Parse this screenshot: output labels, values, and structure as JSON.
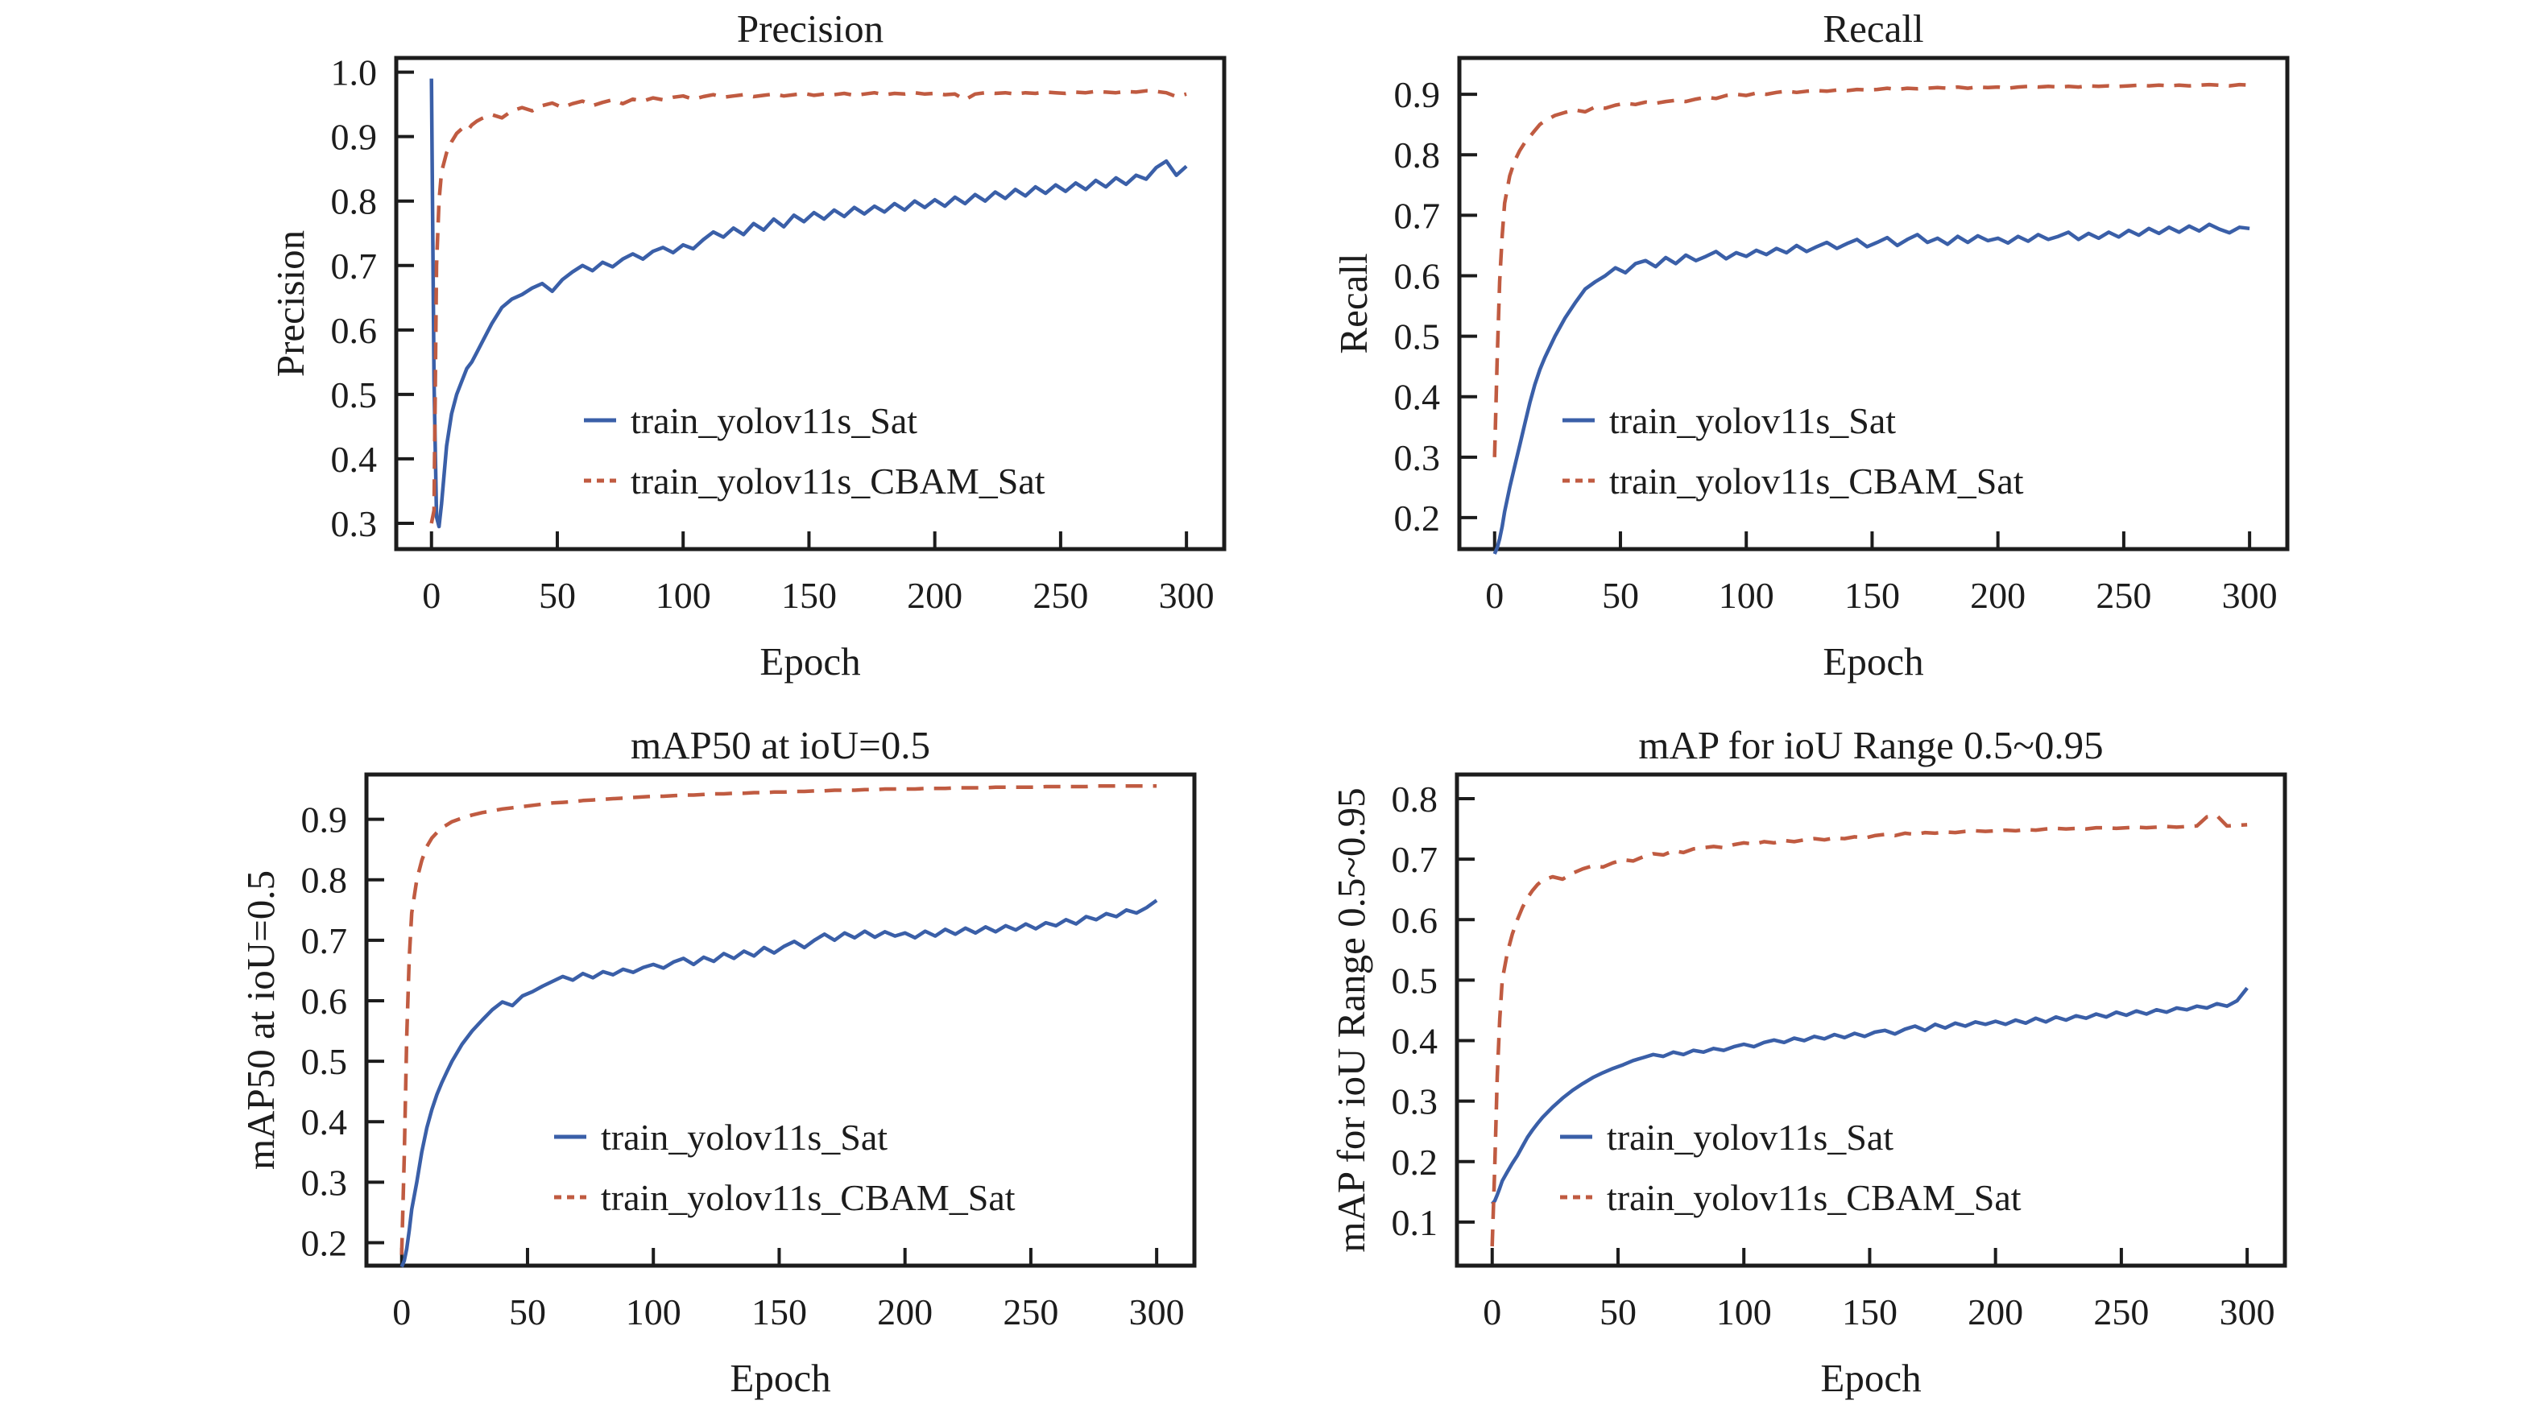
{
  "figure": {
    "background": "#ffffff",
    "ink_color": "#1c1c1c",
    "series_colors": {
      "blue_solid": "#3a5fa8",
      "orange_dashed": "#c05b41"
    }
  },
  "chart_data": {
    "type": "line",
    "xlabel": "Epoch",
    "xticks": [
      0,
      50,
      100,
      150,
      200,
      250,
      300
    ],
    "legend_labels": [
      "train_yolov11s_Sat",
      "train_yolov11s_CBAM_Sat"
    ],
    "epochs": [
      0,
      1,
      2,
      3,
      4,
      6,
      8,
      10,
      12,
      14,
      16,
      18,
      20,
      24,
      28,
      32,
      36,
      40,
      44,
      48,
      52,
      56,
      60,
      64,
      68,
      72,
      76,
      80,
      84,
      88,
      92,
      96,
      100,
      104,
      108,
      112,
      116,
      120,
      124,
      128,
      132,
      136,
      140,
      144,
      148,
      152,
      156,
      160,
      164,
      168,
      172,
      176,
      180,
      184,
      188,
      192,
      196,
      200,
      204,
      208,
      212,
      216,
      220,
      224,
      228,
      232,
      236,
      240,
      244,
      248,
      252,
      256,
      260,
      264,
      268,
      272,
      276,
      280,
      284,
      288,
      292,
      296,
      300
    ],
    "charts": [
      {
        "title": "Precision",
        "ylabel": "Precision",
        "xlabel": "Epoch",
        "xlim": [
          -14,
          315
        ],
        "ylim": [
          0.26,
          1.022
        ],
        "ytick_values": [
          1.0,
          0.9,
          0.8,
          0.7,
          0.6,
          0.5,
          0.4,
          0.3
        ],
        "ytick_labels": [
          "1.0",
          "0.9",
          "0.8",
          "0.7",
          "0.6",
          "0.5",
          "0.4",
          "0.3"
        ],
        "legend_x": 400,
        "series": [
          {
            "name": "train_yolov11s_Sat",
            "color": "#3a5fa8",
            "style": "solid",
            "values": [
              0.99,
              0.52,
              0.31,
              0.295,
              0.33,
              0.42,
              0.47,
              0.5,
              0.52,
              0.54,
              0.55,
              0.565,
              0.58,
              0.61,
              0.635,
              0.648,
              0.655,
              0.665,
              0.672,
              0.66,
              0.678,
              0.69,
              0.7,
              0.692,
              0.705,
              0.698,
              0.71,
              0.718,
              0.71,
              0.722,
              0.728,
              0.72,
              0.732,
              0.726,
              0.74,
              0.752,
              0.744,
              0.758,
              0.748,
              0.765,
              0.755,
              0.772,
              0.76,
              0.778,
              0.768,
              0.782,
              0.772,
              0.786,
              0.776,
              0.79,
              0.78,
              0.792,
              0.783,
              0.796,
              0.786,
              0.8,
              0.79,
              0.802,
              0.792,
              0.806,
              0.796,
              0.81,
              0.8,
              0.814,
              0.804,
              0.818,
              0.808,
              0.822,
              0.812,
              0.825,
              0.815,
              0.828,
              0.818,
              0.832,
              0.822,
              0.836,
              0.826,
              0.84,
              0.834,
              0.852,
              0.862,
              0.84,
              0.854
            ]
          },
          {
            "name": "train_yolov11s_CBAM_Sat",
            "color": "#c05b41",
            "style": "dashed",
            "values": [
              0.3,
              0.32,
              0.7,
              0.8,
              0.845,
              0.875,
              0.892,
              0.905,
              0.912,
              0.908,
              0.918,
              0.924,
              0.928,
              0.934,
              0.929,
              0.94,
              0.945,
              0.94,
              0.948,
              0.952,
              0.945,
              0.951,
              0.955,
              0.948,
              0.953,
              0.957,
              0.951,
              0.958,
              0.955,
              0.96,
              0.957,
              0.961,
              0.963,
              0.958,
              0.962,
              0.965,
              0.961,
              0.963,
              0.965,
              0.962,
              0.964,
              0.966,
              0.963,
              0.965,
              0.967,
              0.964,
              0.966,
              0.965,
              0.967,
              0.964,
              0.966,
              0.968,
              0.965,
              0.967,
              0.966,
              0.968,
              0.966,
              0.967,
              0.965,
              0.966,
              0.957,
              0.966,
              0.968,
              0.967,
              0.968,
              0.966,
              0.968,
              0.967,
              0.969,
              0.968,
              0.967,
              0.969,
              0.968,
              0.97,
              0.969,
              0.968,
              0.97,
              0.969,
              0.971,
              0.97,
              0.968,
              0.962,
              0.966
            ]
          }
        ]
      },
      {
        "title": "Recall",
        "ylabel": "Recall",
        "xlabel": "Epoch",
        "xlim": [
          -14,
          315
        ],
        "ylim": [
          0.148,
          0.96
        ],
        "ytick_values": [
          0.9,
          0.8,
          0.7,
          0.6,
          0.5,
          0.4,
          0.3,
          0.2
        ],
        "ytick_labels": [
          "0.9",
          "0.8",
          "0.7",
          "0.6",
          "0.5",
          "0.4",
          "0.3",
          "0.2"
        ],
        "legend_x": 295,
        "series": [
          {
            "name": "train_yolov11s_Sat",
            "color": "#3a5fa8",
            "style": "solid",
            "values": [
              0.14,
              0.15,
              0.165,
              0.185,
              0.21,
              0.25,
              0.285,
              0.32,
              0.355,
              0.39,
              0.42,
              0.445,
              0.465,
              0.5,
              0.53,
              0.555,
              0.578,
              0.59,
              0.6,
              0.613,
              0.605,
              0.62,
              0.625,
              0.615,
              0.63,
              0.62,
              0.634,
              0.625,
              0.632,
              0.64,
              0.628,
              0.638,
              0.632,
              0.642,
              0.635,
              0.645,
              0.638,
              0.65,
              0.64,
              0.648,
              0.655,
              0.645,
              0.653,
              0.66,
              0.648,
              0.655,
              0.663,
              0.65,
              0.66,
              0.668,
              0.655,
              0.662,
              0.652,
              0.665,
              0.655,
              0.666,
              0.658,
              0.662,
              0.654,
              0.665,
              0.657,
              0.668,
              0.66,
              0.665,
              0.672,
              0.66,
              0.67,
              0.662,
              0.672,
              0.664,
              0.675,
              0.667,
              0.678,
              0.67,
              0.68,
              0.672,
              0.682,
              0.674,
              0.685,
              0.677,
              0.671,
              0.68,
              0.678
            ]
          },
          {
            "name": "train_yolov11s_CBAM_Sat",
            "color": "#c05b41",
            "style": "dashed",
            "values": [
              0.3,
              0.46,
              0.59,
              0.665,
              0.72,
              0.765,
              0.79,
              0.807,
              0.82,
              0.83,
              0.84,
              0.85,
              0.856,
              0.865,
              0.87,
              0.874,
              0.871,
              0.879,
              0.877,
              0.882,
              0.885,
              0.883,
              0.887,
              0.885,
              0.888,
              0.89,
              0.888,
              0.892,
              0.895,
              0.893,
              0.898,
              0.9,
              0.898,
              0.902,
              0.9,
              0.903,
              0.905,
              0.903,
              0.905,
              0.906,
              0.905,
              0.907,
              0.906,
              0.908,
              0.907,
              0.908,
              0.91,
              0.908,
              0.91,
              0.909,
              0.91,
              0.911,
              0.91,
              0.912,
              0.91,
              0.912,
              0.911,
              0.912,
              0.91,
              0.912,
              0.913,
              0.912,
              0.913,
              0.912,
              0.913,
              0.912,
              0.914,
              0.913,
              0.914,
              0.913,
              0.914,
              0.915,
              0.914,
              0.915,
              0.914,
              0.915,
              0.914,
              0.915,
              0.916,
              0.915,
              0.914,
              0.916,
              0.915
            ]
          }
        ]
      },
      {
        "title": "mAP50 at ioU=0.5",
        "ylabel": "mAP50 at ioU=0.5",
        "xlabel": "Epoch",
        "xlim": [
          -14,
          315
        ],
        "ylim": [
          0.162,
          0.974
        ],
        "ytick_values": [
          0.9,
          0.8,
          0.7,
          0.6,
          0.5,
          0.4,
          0.3,
          0.2
        ],
        "ytick_labels": [
          "0.9",
          "0.8",
          "0.7",
          "0.6",
          "0.5",
          "0.4",
          "0.3",
          "0.2"
        ],
        "legend_x": 400,
        "series": [
          {
            "name": "train_yolov11s_Sat",
            "color": "#3a5fa8",
            "style": "solid",
            "values": [
              0.16,
              0.17,
              0.19,
              0.22,
              0.255,
              0.3,
              0.35,
              0.39,
              0.42,
              0.445,
              0.465,
              0.483,
              0.5,
              0.528,
              0.55,
              0.568,
              0.585,
              0.598,
              0.592,
              0.608,
              0.615,
              0.624,
              0.632,
              0.64,
              0.634,
              0.645,
              0.638,
              0.648,
              0.643,
              0.652,
              0.647,
              0.655,
              0.66,
              0.654,
              0.664,
              0.67,
              0.66,
              0.672,
              0.665,
              0.678,
              0.67,
              0.682,
              0.674,
              0.688,
              0.679,
              0.69,
              0.698,
              0.688,
              0.7,
              0.71,
              0.7,
              0.712,
              0.704,
              0.715,
              0.705,
              0.714,
              0.707,
              0.712,
              0.704,
              0.715,
              0.707,
              0.718,
              0.71,
              0.72,
              0.712,
              0.722,
              0.714,
              0.724,
              0.717,
              0.727,
              0.719,
              0.729,
              0.724,
              0.734,
              0.727,
              0.739,
              0.734,
              0.744,
              0.739,
              0.75,
              0.745,
              0.754,
              0.766
            ]
          },
          {
            "name": "train_yolov11s_CBAM_Sat",
            "color": "#c05b41",
            "style": "dashed",
            "values": [
              0.18,
              0.34,
              0.54,
              0.67,
              0.745,
              0.8,
              0.832,
              0.855,
              0.869,
              0.878,
              0.886,
              0.891,
              0.896,
              0.902,
              0.907,
              0.911,
              0.914,
              0.917,
              0.919,
              0.921,
              0.923,
              0.925,
              0.927,
              0.928,
              0.929,
              0.931,
              0.932,
              0.933,
              0.934,
              0.935,
              0.936,
              0.937,
              0.938,
              0.938,
              0.939,
              0.94,
              0.94,
              0.941,
              0.942,
              0.942,
              0.943,
              0.943,
              0.944,
              0.944,
              0.945,
              0.945,
              0.946,
              0.946,
              0.947,
              0.947,
              0.948,
              0.948,
              0.948,
              0.949,
              0.949,
              0.95,
              0.95,
              0.95,
              0.95,
              0.951,
              0.951,
              0.951,
              0.952,
              0.952,
              0.952,
              0.952,
              0.953,
              0.953,
              0.953,
              0.953,
              0.953,
              0.954,
              0.954,
              0.954,
              0.954,
              0.954,
              0.955,
              0.955,
              0.955,
              0.955,
              0.955,
              0.955,
              0.955
            ]
          }
        ]
      },
      {
        "title": "mAP for ioU Range 0.5~0.95",
        "ylabel": "mAP for ioU Range 0.5~0.95",
        "xlabel": "Epoch",
        "xlim": [
          -14,
          315
        ],
        "ylim": [
          0.028,
          0.84
        ],
        "ytick_values": [
          0.8,
          0.7,
          0.6,
          0.5,
          0.4,
          0.3,
          0.2,
          0.1
        ],
        "ytick_labels": [
          "0.8",
          "0.7",
          "0.6",
          "0.5",
          "0.4",
          "0.3",
          "0.2",
          "0.1"
        ],
        "legend_x": 295,
        "series": [
          {
            "name": "train_yolov11s_Sat",
            "color": "#3a5fa8",
            "style": "solid",
            "values": [
              0.13,
              0.135,
              0.145,
              0.156,
              0.168,
              0.183,
              0.197,
              0.21,
              0.225,
              0.24,
              0.252,
              0.263,
              0.273,
              0.29,
              0.305,
              0.318,
              0.329,
              0.339,
              0.347,
              0.354,
              0.36,
              0.367,
              0.372,
              0.377,
              0.374,
              0.381,
              0.377,
              0.384,
              0.381,
              0.387,
              0.384,
              0.39,
              0.394,
              0.39,
              0.397,
              0.401,
              0.397,
              0.404,
              0.4,
              0.407,
              0.403,
              0.41,
              0.405,
              0.412,
              0.407,
              0.414,
              0.417,
              0.411,
              0.419,
              0.424,
              0.417,
              0.427,
              0.421,
              0.429,
              0.424,
              0.431,
              0.427,
              0.432,
              0.427,
              0.434,
              0.429,
              0.437,
              0.431,
              0.439,
              0.434,
              0.441,
              0.437,
              0.444,
              0.439,
              0.447,
              0.442,
              0.449,
              0.444,
              0.451,
              0.447,
              0.454,
              0.451,
              0.457,
              0.454,
              0.461,
              0.457,
              0.466,
              0.487
            ]
          },
          {
            "name": "train_yolov11s_CBAM_Sat",
            "color": "#c05b41",
            "style": "dashed",
            "values": [
              0.06,
              0.19,
              0.34,
              0.435,
              0.5,
              0.545,
              0.576,
              0.6,
              0.62,
              0.636,
              0.648,
              0.658,
              0.665,
              0.671,
              0.667,
              0.677,
              0.684,
              0.689,
              0.687,
              0.694,
              0.699,
              0.697,
              0.704,
              0.709,
              0.707,
              0.714,
              0.711,
              0.717,
              0.719,
              0.721,
              0.719,
              0.724,
              0.727,
              0.725,
              0.729,
              0.727,
              0.731,
              0.729,
              0.732,
              0.734,
              0.732,
              0.735,
              0.734,
              0.737,
              0.735,
              0.739,
              0.741,
              0.739,
              0.743,
              0.741,
              0.744,
              0.743,
              0.745,
              0.744,
              0.746,
              0.747,
              0.746,
              0.747,
              0.748,
              0.747,
              0.749,
              0.748,
              0.75,
              0.751,
              0.75,
              0.751,
              0.75,
              0.752,
              0.752,
              0.751,
              0.752,
              0.753,
              0.752,
              0.753,
              0.754,
              0.753,
              0.754,
              0.755,
              0.77,
              0.772,
              0.755,
              0.756,
              0.757
            ]
          }
        ]
      }
    ]
  }
}
